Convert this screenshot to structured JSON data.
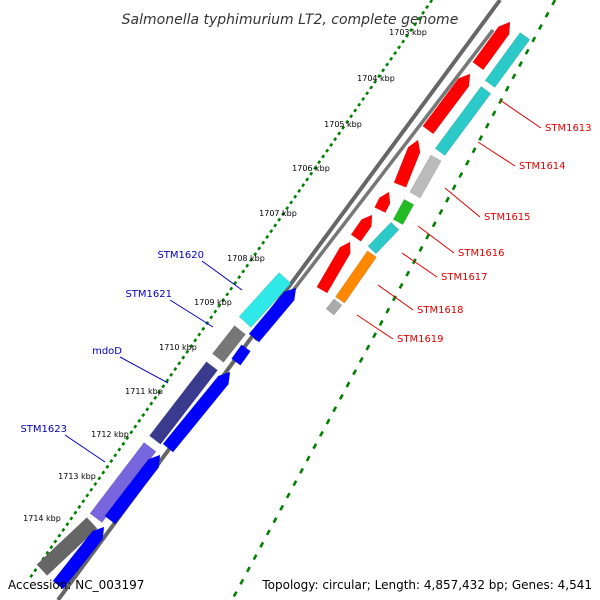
{
  "title": "Salmonella typhimurium LT2, complete genome",
  "footer": {
    "accession": "Accession: NC_003197",
    "topology": "Topology: circular; Length: 4,857,432 bp; Genes: 4,541"
  },
  "ticks": [
    "1703 kbp",
    "1704 kbp",
    "1705 kbp",
    "1706 kbp",
    "1707 kbp",
    "1708 kbp",
    "1709 kbp",
    "1710 kbp",
    "1711 kbp",
    "1712 kbp",
    "1713 kbp",
    "1714 kbp"
  ],
  "labels_right": [
    "STM1613",
    "STM1614",
    "STM1615",
    "STM1616",
    "STM1617",
    "STM1618",
    "STM1619"
  ],
  "labels_left": [
    "STM1620",
    "STM1621",
    "mdoD",
    "STM1623"
  ],
  "colors": {
    "reverse_strand": "#ff0000",
    "forward_strand": "#0000ff",
    "label_right": "#e00000",
    "label_left": "#0000c0",
    "gc_track": "#008000",
    "backbone": "#888888"
  }
}
